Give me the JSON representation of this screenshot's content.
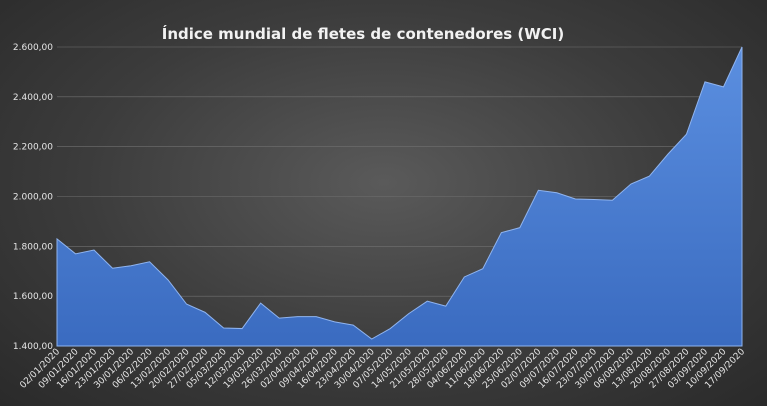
{
  "chart_data": {
    "type": "area",
    "title": "Índice mundial de fletes de contenedores (WCI)",
    "xlabel": "",
    "ylabel": "",
    "ylim": [
      1400,
      2600
    ],
    "yticks": [
      "1.400,00",
      "1.600,00",
      "1.800,00",
      "2.000,00",
      "2.200,00",
      "2.400,00",
      "2.600,00"
    ],
    "ytick_values": [
      1400,
      1600,
      1800,
      2000,
      2200,
      2400,
      2600
    ],
    "grid": true,
    "legend": "none",
    "x": [
      "02/01/2020",
      "09/01/2020",
      "16/01/2020",
      "23/01/2020",
      "30/01/2020",
      "06/02/2020",
      "13/02/2020",
      "20/02/2020",
      "27/02/2020",
      "05/03/2020",
      "12/03/2020",
      "19/03/2020",
      "26/03/2020",
      "02/04/2020",
      "09/04/2020",
      "16/04/2020",
      "23/04/2020",
      "30/04/2020",
      "07/05/2020",
      "14/05/2020",
      "21/05/2020",
      "28/05/2020",
      "04/06/2020",
      "11/06/2020",
      "18/06/2020",
      "25/06/2020",
      "02/07/2020",
      "09/07/2020",
      "16/07/2020",
      "23/07/2020",
      "30/07/2020",
      "06/08/2020",
      "13/08/2020",
      "20/08/2020",
      "27/08/2020",
      "03/09/2020",
      "10/09/2020",
      "17/09/2020"
    ],
    "values": [
      1830,
      1770,
      1785,
      1712,
      1722,
      1738,
      1665,
      1568,
      1535,
      1472,
      1470,
      1572,
      1512,
      1518,
      1518,
      1497,
      1484,
      1428,
      1470,
      1530,
      1580,
      1560,
      1677,
      1710,
      1855,
      1875,
      2025,
      2015,
      1990,
      1988,
      1985,
      2050,
      2082,
      2170,
      2250,
      2460,
      2440,
      2600
    ],
    "color": "#4472c4"
  }
}
